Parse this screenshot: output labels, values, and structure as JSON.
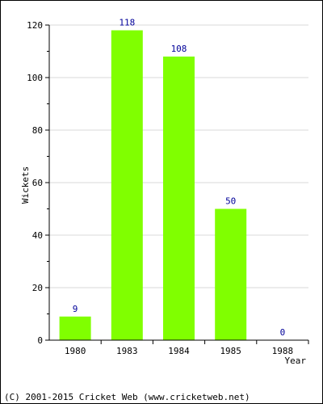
{
  "chart_data": {
    "type": "bar",
    "categories": [
      "1980",
      "1983",
      "1984",
      "1985",
      "1988"
    ],
    "values": [
      9,
      118,
      108,
      50,
      0
    ],
    "xlabel": "Year",
    "ylabel": "Wickets",
    "ylim": [
      0,
      120
    ],
    "yticks": [
      0,
      20,
      40,
      60,
      80,
      100,
      120
    ],
    "grid": true,
    "bar_color": "#80ff00",
    "label_color": "#000099"
  },
  "footer": "(C) 2001-2015 Cricket Web (www.cricketweb.net)"
}
